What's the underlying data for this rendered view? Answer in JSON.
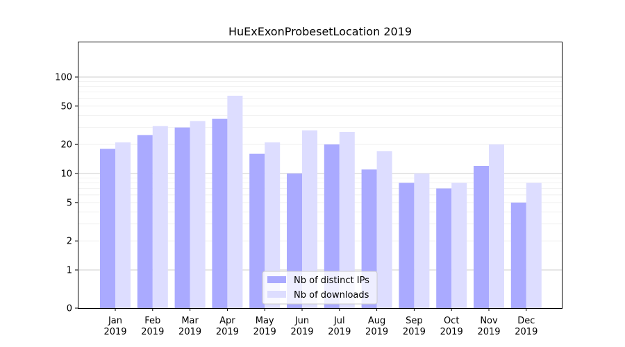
{
  "chart_data": {
    "type": "bar",
    "title": "HuExExonProbesetLocation 2019",
    "xlabel": "",
    "ylabel": "",
    "y_scale": "symlog",
    "ylim": [
      0,
      120
    ],
    "y_ticks": [
      0,
      1,
      2,
      5,
      10,
      20,
      50,
      100
    ],
    "categories": [
      [
        "Jan",
        "2019"
      ],
      [
        "Feb",
        "2019"
      ],
      [
        "Mar",
        "2019"
      ],
      [
        "Apr",
        "2019"
      ],
      [
        "May",
        "2019"
      ],
      [
        "Jun",
        "2019"
      ],
      [
        "Jul",
        "2019"
      ],
      [
        "Aug",
        "2019"
      ],
      [
        "Sep",
        "2019"
      ],
      [
        "Oct",
        "2019"
      ],
      [
        "Nov",
        "2019"
      ],
      [
        "Dec",
        "2019"
      ]
    ],
    "series": [
      {
        "name": "Nb of distinct IPs",
        "color": "#aaaaff",
        "values": [
          18,
          25,
          30,
          37,
          16,
          10,
          20,
          11,
          8,
          7,
          12,
          5
        ]
      },
      {
        "name": "Nb of downloads",
        "color": "#ddddff",
        "values": [
          21,
          31,
          35,
          64,
          21,
          28,
          27,
          17,
          10,
          8,
          20,
          8
        ]
      }
    ],
    "grid": true,
    "legend_position": "bottom-center"
  }
}
